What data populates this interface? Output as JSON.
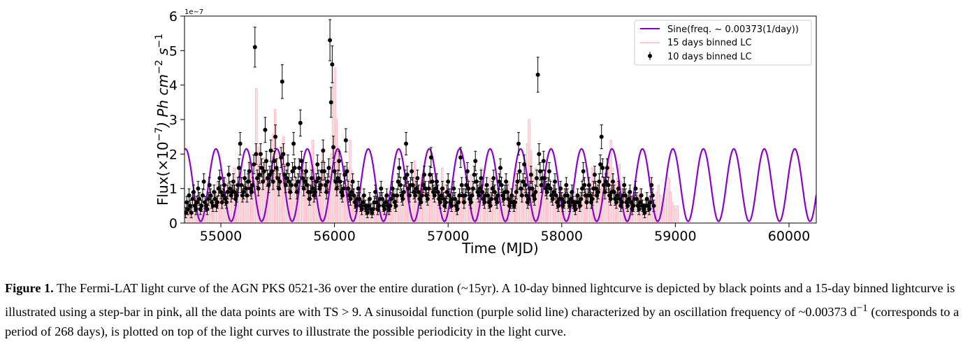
{
  "chart_data": {
    "type": "line",
    "xlabel": "Time (MJD)",
    "ylabel_parts": {
      "pre": "Flux(×10",
      "exp1": "−7",
      "mid": ") Ph cm",
      "exp2": "−2",
      "mid2": " s",
      "exp3": "−1"
    },
    "offset_text": "1e−7",
    "xlim": [
      54680,
      60240
    ],
    "ylim": [
      0,
      6
    ],
    "xticks": [
      55000,
      56000,
      57000,
      58000,
      59000,
      60000
    ],
    "yticks": [
      0,
      1,
      2,
      3,
      4,
      5,
      6
    ],
    "legend_position": "top-right",
    "series": [
      {
        "name": "Sine(freq. ~ 0.00373(1/day))",
        "kind": "sine",
        "color": "#8b00c9",
        "frequency": 0.00373,
        "mean": 1.1,
        "amplitude": 1.05,
        "phase_peak_x": 55225
      },
      {
        "name": "15 days binned LC",
        "kind": "step",
        "color": "#ffb6c1",
        "x_start": 54690,
        "bin": 15,
        "values": [
          0.5,
          0.4,
          0.3,
          0.6,
          0.8,
          0.5,
          0.4,
          0.6,
          0.9,
          0.7,
          0.5,
          0.6,
          0.8,
          1.0,
          0.7,
          0.5,
          0.6,
          0.9,
          1.2,
          0.8,
          0.6,
          0.7,
          1.0,
          1.3,
          0.9,
          0.7,
          0.9,
          1.2,
          1.6,
          1.1,
          0.9,
          1.2,
          1.5,
          1.0,
          0.8,
          0.9,
          1.3,
          1.8,
          1.4,
          1.0,
          1.2,
          3.9,
          2.2,
          1.5,
          1.2,
          1.6,
          1.9,
          1.4,
          1.1,
          1.3,
          1.8,
          2.6,
          3.3,
          2.0,
          1.4,
          1.2,
          1.9,
          2.5,
          1.7,
          1.3,
          1.0,
          0.9,
          1.2,
          1.5,
          1.1,
          0.8,
          0.7,
          0.9,
          1.3,
          1.6,
          1.2,
          1.0,
          1.3,
          1.8,
          2.4,
          1.6,
          1.0,
          0.9,
          1.1,
          1.5,
          2.1,
          1.4,
          1.1,
          1.0,
          1.3,
          2.0,
          4.1,
          4.5,
          3.0,
          1.8,
          1.2,
          1.0,
          0.8,
          0.9,
          1.1,
          1.6,
          2.4,
          1.5,
          1.0,
          0.8,
          0.7,
          0.8,
          1.0,
          0.7,
          0.5,
          0.4,
          0.5,
          0.7,
          0.6,
          0.4,
          0.3,
          0.5,
          0.8,
          0.6,
          0.4,
          0.3,
          0.5,
          0.7,
          0.9,
          0.6,
          0.4,
          0.5,
          0.7,
          1.0,
          0.8,
          0.5,
          0.6,
          0.9,
          1.4,
          1.1,
          0.8,
          0.7,
          0.9,
          1.2,
          1.8,
          1.3,
          1.0,
          1.1,
          1.4,
          1.2,
          0.9,
          0.7,
          0.8,
          1.1,
          1.4,
          1.0,
          0.7,
          0.6,
          0.8,
          1.0,
          1.6,
          1.1,
          0.8,
          0.6,
          0.5,
          0.6,
          0.8,
          0.6,
          0.5,
          0.4,
          0.6,
          0.8,
          1.1,
          0.8,
          0.6,
          0.7,
          1.0,
          1.4,
          1.0,
          0.7,
          0.6,
          0.8,
          1.1,
          1.6,
          1.2,
          0.9,
          0.8,
          1.0,
          1.3,
          1.1,
          0.8,
          0.6,
          0.5,
          0.7,
          0.9,
          0.7,
          0.5,
          0.6,
          0.8,
          1.2,
          1.0,
          0.7,
          0.8,
          1.1,
          1.5,
          1.2,
          0.9,
          0.8,
          1.1,
          1.7,
          2.3,
          3.0,
          2.1,
          1.5,
          1.3,
          1.6,
          1.2,
          0.9,
          0.8,
          1.0,
          1.4,
          1.0,
          0.8,
          0.6,
          0.7,
          0.9,
          1.1,
          0.8,
          0.6,
          0.5,
          0.6,
          0.8,
          1.0,
          0.7,
          0.5,
          0.4,
          0.5,
          0.7,
          0.9,
          0.6,
          0.5,
          0.7,
          1.0,
          1.3,
          0.9,
          0.7,
          0.8,
          1.1,
          1.6,
          1.2,
          0.9,
          0.8,
          1.0,
          1.3,
          1.0,
          0.8,
          0.9,
          1.2,
          1.8,
          2.4,
          1.6,
          1.2,
          1.0,
          1.3,
          1.7,
          1.2,
          0.9,
          0.7,
          0.6,
          0.8,
          1.0,
          0.8,
          0.6,
          0.5,
          0.6,
          0.8,
          1.0,
          0.7,
          0.5,
          0.4,
          0.5,
          0.6,
          0.8,
          0.6,
          0.5,
          0.6,
          0.9,
          1.1,
          0.8,
          0.6,
          0.5,
          0.7,
          1.0,
          1.3,
          0.9,
          0.6,
          0.5,
          0.4,
          0.5
        ]
      },
      {
        "name": "10 days binned LC",
        "kind": "errorbar",
        "color": "#000000",
        "x_start": 54690,
        "bin": 10,
        "values": [
          0.3,
          0.6,
          0.4,
          0.8,
          0.5,
          0.3,
          0.7,
          0.9,
          0.5,
          0.4,
          0.6,
          1.0,
          0.7,
          0.4,
          0.5,
          0.8,
          1.2,
          0.6,
          0.5,
          0.4,
          0.7,
          1.1,
          0.8,
          0.6,
          0.5,
          0.9,
          0.7,
          0.5,
          0.6,
          1.0,
          1.3,
          0.9,
          0.6,
          0.8,
          1.1,
          0.7,
          0.6,
          0.9,
          1.4,
          1.0,
          0.8,
          0.9,
          1.2,
          0.9,
          0.7,
          0.8,
          1.1,
          1.6,
          2.3,
          1.1,
          0.8,
          0.9,
          1.3,
          1.0,
          0.8,
          1.2,
          1.5,
          1.0,
          0.9,
          1.1,
          1.7,
          5.1,
          2.0,
          1.3,
          1.0,
          1.4,
          2.0,
          1.6,
          1.2,
          1.5,
          2.7,
          1.8,
          1.3,
          1.1,
          1.4,
          2.1,
          1.5,
          1.2,
          1.8,
          2.5,
          1.6,
          1.3,
          1.0,
          1.2,
          1.9,
          4.1,
          2.0,
          1.4,
          1.1,
          1.3,
          1.7,
          1.2,
          0.9,
          1.1,
          1.5,
          2.3,
          1.6,
          1.1,
          0.9,
          1.2,
          1.6,
          2.9,
          1.8,
          1.3,
          1.0,
          1.2,
          1.5,
          1.1,
          0.9,
          0.7,
          0.9,
          1.3,
          1.0,
          0.8,
          0.9,
          1.2,
          1.7,
          1.3,
          1.0,
          1.1,
          1.5,
          2.1,
          1.5,
          1.1,
          0.9,
          1.2,
          1.6,
          5.3,
          3.5,
          4.6,
          2.2,
          1.5,
          1.2,
          1.0,
          1.3,
          1.8,
          1.2,
          0.9,
          0.8,
          1.0,
          1.4,
          2.4,
          1.5,
          1.0,
          0.8,
          0.7,
          0.9,
          1.2,
          0.8,
          0.6,
          0.5,
          0.7,
          1.0,
          0.7,
          0.5,
          0.4,
          0.6,
          0.8,
          0.5,
          0.4,
          0.3,
          0.5,
          0.7,
          0.4,
          0.3,
          0.4,
          0.6,
          0.9,
          0.6,
          0.4,
          0.5,
          0.7,
          1.0,
          0.7,
          0.5,
          0.4,
          0.6,
          0.8,
          0.5,
          0.4,
          0.5,
          0.7,
          1.0,
          0.8,
          0.6,
          0.5,
          0.8,
          1.2,
          1.6,
          1.1,
          0.8,
          0.7,
          0.9,
          1.3,
          2.3,
          1.4,
          1.0,
          0.8,
          1.1,
          1.5,
          1.1,
          0.9,
          0.8,
          1.0,
          1.3,
          0.9,
          0.7,
          0.6,
          0.8,
          1.1,
          1.4,
          1.0,
          0.8,
          0.7,
          1.0,
          1.4,
          1.9,
          1.2,
          0.9,
          0.8,
          1.0,
          1.2,
          0.9,
          0.7,
          0.6,
          0.8,
          1.0,
          0.7,
          0.5,
          0.6,
          0.9,
          1.2,
          0.8,
          0.6,
          0.5,
          0.7,
          1.0,
          0.7,
          0.5,
          0.4,
          0.6,
          0.8,
          1.9,
          1.1,
          0.8,
          0.6,
          0.8,
          1.1,
          1.5,
          1.0,
          0.7,
          0.6,
          0.8,
          1.0,
          1.4,
          1.8,
          1.2,
          0.9,
          0.8,
          1.0,
          1.3,
          0.9,
          0.7,
          0.6,
          0.8,
          1.1,
          0.8,
          0.6,
          0.5,
          0.7,
          1.0,
          1.3,
          0.9,
          0.7,
          0.6,
          0.8,
          1.2,
          1.6,
          1.1,
          0.8,
          0.7,
          0.9,
          1.2,
          0.9,
          0.7,
          0.5,
          0.6,
          0.8,
          0.6,
          0.5,
          0.6,
          0.9,
          1.2,
          2.3,
          1.5,
          1.0,
          0.8,
          1.2,
          1.7,
          1.1,
          0.8,
          0.6,
          0.7,
          1.0,
          1.4,
          1.0,
          0.8,
          0.7,
          0.9,
          1.3,
          4.3,
          2.0,
          1.5,
          1.1,
          1.3,
          1.8,
          1.3,
          1.0,
          0.9,
          1.1,
          1.5,
          1.0,
          0.8,
          0.7,
          0.9,
          1.2,
          0.8,
          0.6,
          0.5,
          0.7,
          1.0,
          0.7,
          0.5,
          0.6,
          0.8,
          1.1,
          0.8,
          0.6,
          0.5,
          0.7,
          0.9,
          0.6,
          0.5,
          0.4,
          0.6,
          0.8,
          0.6,
          0.5,
          0.7,
          1.0,
          1.5,
          1.1,
          0.8,
          0.6,
          0.8,
          1.1,
          0.8,
          0.6,
          0.7,
          1.0,
          1.4,
          1.0,
          0.8,
          0.9,
          1.2,
          1.7,
          2.5,
          1.6,
          1.1,
          0.9,
          1.2,
          1.6,
          1.1,
          0.8,
          0.7,
          0.9,
          1.2,
          0.9,
          0.7,
          0.6,
          0.8,
          1.0,
          0.7,
          0.5,
          0.6,
          0.8,
          1.1,
          0.8,
          0.6,
          0.5,
          0.7,
          0.9,
          0.6,
          0.4,
          0.5,
          0.7,
          1.0,
          0.7,
          0.5,
          0.4,
          0.6,
          0.8,
          0.5,
          0.4,
          0.3,
          0.5,
          0.7,
          0.5,
          0.4,
          0.6,
          1.1,
          0.8,
          0.5
        ]
      }
    ]
  },
  "caption": {
    "label": "Figure 1.",
    "text": " The Fermi-LAT light curve of the AGN PKS 0521-36 over the entire duration (~15yr). A 10-day binned lightcurve is depicted by black points and a 15-day binned lightcurve is illustrated using a step-bar in pink, all the data points are with TS > 9. A sinusoidal function (purple solid line) characterized by an oscillation frequency of ~0.00373 d",
    "text_sup": "−1",
    "text_end": " (corresponds to a period of 268 days), is plotted on top of the light curves to illustrate the possible periodicity in the light curve."
  }
}
